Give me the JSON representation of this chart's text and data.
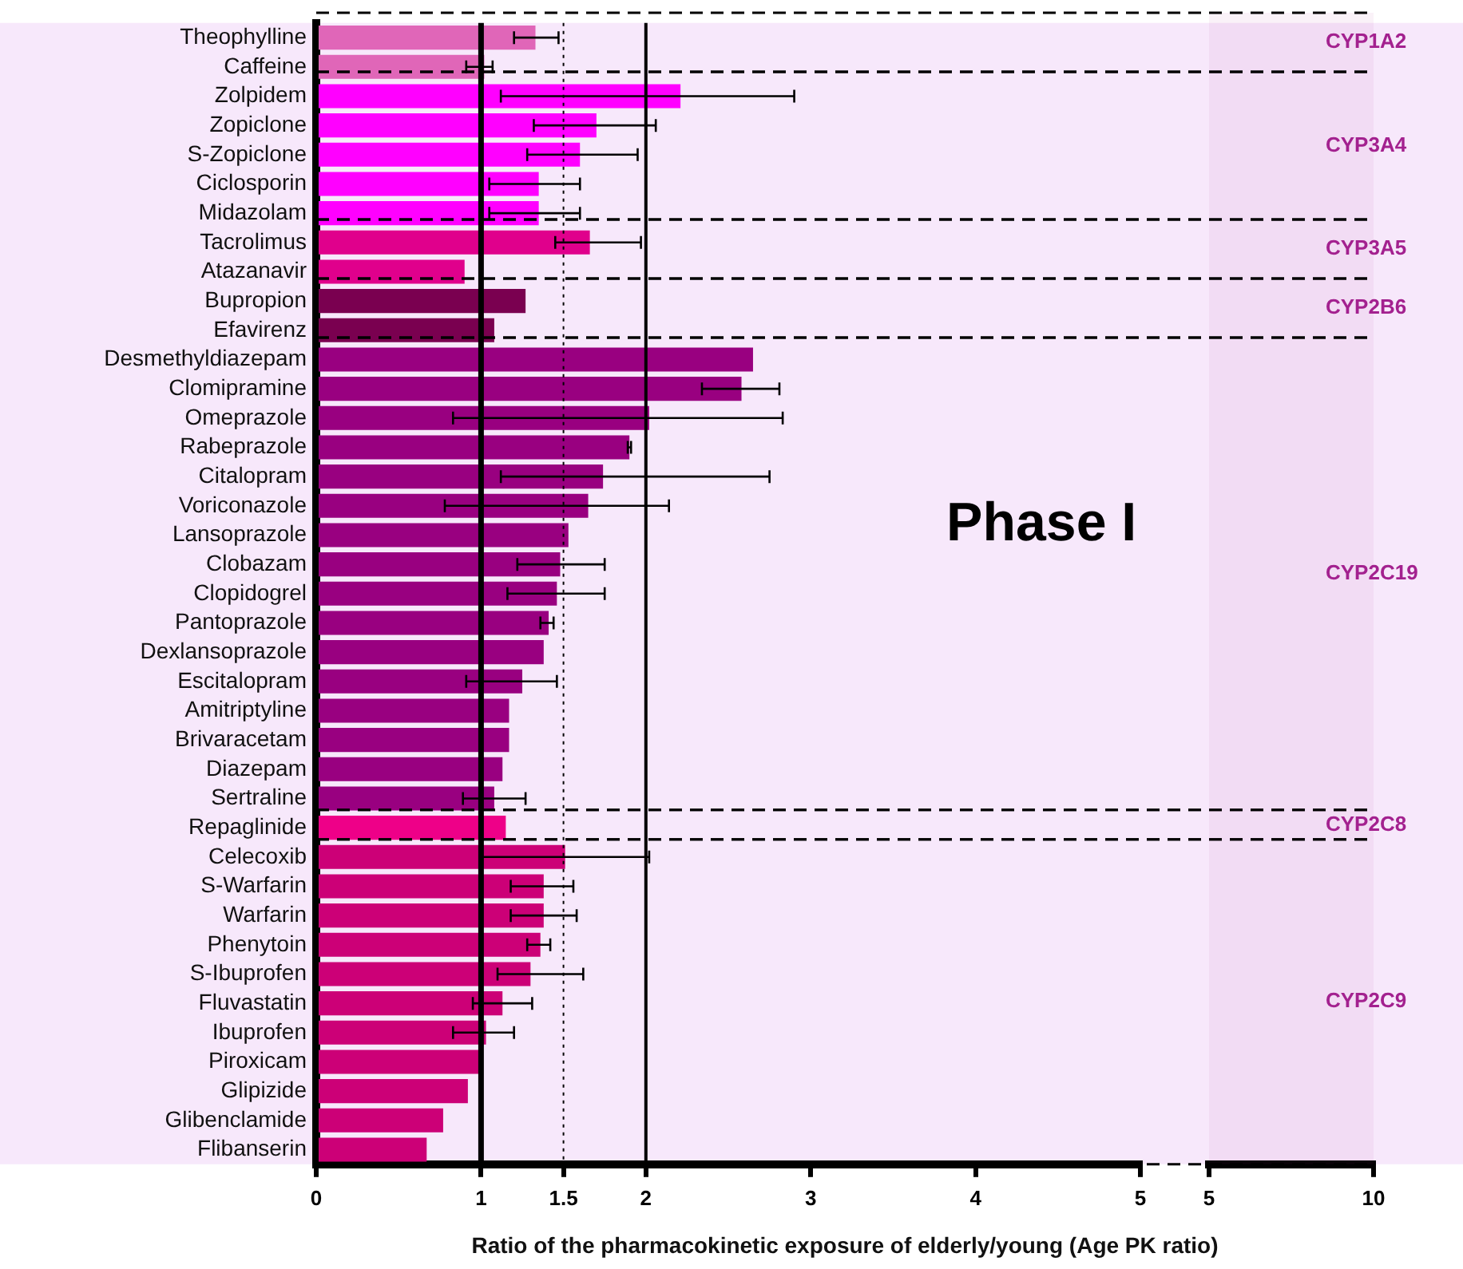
{
  "chart_data": [
    {
      "type": "bar",
      "orientation": "horizontal",
      "xlabel": "Ratio of the pharmacokinetic exposure of elderly/young (Age PK ratio)",
      "categories": [
        "Theophylline",
        "Caffeine",
        "Zolpidem",
        "Zopiclone",
        "S-Zopiclone",
        "Ciclosporin",
        "Midazolam",
        "Tacrolimus",
        "Atazanavir",
        "Bupropion",
        "Efavirenz",
        "Desmethyldiazepam",
        "Clomipramine",
        "Omeprazole",
        "Rabeprazole",
        "Citalopram",
        "Voriconazole",
        "Lansoprazole",
        "Clobazam",
        "Clopidogrel",
        "Pantoprazole",
        "Dexlansoprazole",
        "Escitalopram",
        "Amitriptyline",
        "Brivaracetam",
        "Diazepam",
        "Sertraline",
        "Repaglinide",
        "Celecoxib",
        "S-Warfarin",
        "Warfarin",
        "Phenytoin",
        "S-Ibuprofen",
        "Fluvastatin",
        "Ibuprofen",
        "Piroxicam",
        "Glipizide",
        "Glibenclamide",
        "Flibanserin"
      ],
      "values": [
        1.33,
        1.02,
        2.21,
        1.7,
        1.6,
        1.35,
        1.35,
        1.66,
        0.9,
        1.27,
        1.08,
        2.65,
        2.58,
        2.02,
        1.9,
        1.74,
        1.65,
        1.53,
        1.48,
        1.46,
        1.41,
        1.38,
        1.25,
        1.17,
        1.17,
        1.13,
        1.08,
        1.15,
        1.51,
        1.38,
        1.38,
        1.36,
        1.3,
        1.13,
        1.03,
        1.01,
        0.92,
        0.77,
        0.67
      ],
      "colors": [
        "#e066b8",
        "#e066b8",
        "#ff00ff",
        "#ff00ff",
        "#ff00ff",
        "#ff00ff",
        "#ff00ff",
        "#e0008c",
        "#e0008c",
        "#7a0050",
        "#7a0050",
        "#990080",
        "#990080",
        "#990080",
        "#990080",
        "#990080",
        "#990080",
        "#990080",
        "#990080",
        "#990080",
        "#990080",
        "#990080",
        "#990080",
        "#990080",
        "#990080",
        "#990080",
        "#990080",
        "#ee0088",
        "#cc0077",
        "#cc0077",
        "#cc0077",
        "#cc0077",
        "#cc0077",
        "#cc0077",
        "#cc0077",
        "#cc0077",
        "#cc0077",
        "#cc0077",
        "#cc0077"
      ],
      "errors": [
        [
          1.2,
          1.47
        ],
        [
          0.91,
          1.07
        ],
        [
          1.12,
          2.9
        ],
        [
          1.32,
          2.06
        ],
        [
          1.28,
          1.95
        ],
        [
          1.05,
          1.6
        ],
        [
          1.05,
          1.6
        ],
        [
          1.45,
          1.97
        ],
        null,
        null,
        null,
        null,
        [
          2.34,
          2.81
        ],
        [
          0.83,
          2.83
        ],
        [
          1.89,
          1.91
        ],
        [
          1.12,
          2.75
        ],
        [
          0.78,
          2.14
        ],
        null,
        [
          1.22,
          1.75
        ],
        [
          1.16,
          1.75
        ],
        [
          1.36,
          1.44
        ],
        null,
        [
          0.91,
          1.46
        ],
        null,
        null,
        null,
        [
          0.89,
          1.27
        ],
        null,
        [
          1.0,
          2.02
        ],
        [
          1.18,
          1.56
        ],
        [
          1.18,
          1.58
        ],
        [
          1.28,
          1.42
        ],
        [
          1.1,
          1.62
        ],
        [
          0.95,
          1.31
        ],
        [
          0.83,
          1.2
        ],
        null,
        null,
        null,
        null
      ],
      "xlim": [
        0,
        5
      ],
      "xticks": [
        0,
        1,
        1.5,
        2,
        3,
        4,
        5
      ],
      "ref_lines": [
        {
          "axis": "x",
          "value": 1,
          "line_style": "solid"
        },
        {
          "axis": "x",
          "value": 1.5,
          "line_style": "dotted"
        },
        {
          "axis": "x",
          "value": 2,
          "line_style": "solid"
        }
      ],
      "annotations": [
        "Phase I"
      ],
      "grid": false,
      "legend": false
    },
    {
      "type": "bar",
      "orientation": "horizontal",
      "tick_labels": "x",
      "categories": [
        "Theophylline",
        "Caffeine",
        "Zolpidem",
        "Zopiclone",
        "S-Zopiclone",
        "Ciclosporin",
        "Midazolam",
        "Tacrolimus",
        "Atazanavir",
        "Bupropion",
        "Efavirenz",
        "Desmethyldiazepam",
        "Clomipramine",
        "Omeprazole",
        "Rabeprazole",
        "Citalopram",
        "Voriconazole",
        "Lansoprazole",
        "Clobazam",
        "Clopidogrel",
        "Pantoprazole",
        "Dexlansoprazole",
        "Escitalopram",
        "Amitriptyline",
        "Brivaracetam",
        "Diazepam",
        "Sertraline",
        "Repaglinide",
        "Celecoxib",
        "S-Warfarin",
        "Warfarin",
        "Phenytoin",
        "S-Ibuprofen",
        "Fluvastatin",
        "Ibuprofen",
        "Piroxicam",
        "Glipizide",
        "Glibenclamide",
        "Flibanserin"
      ],
      "values": [
        null,
        null,
        null,
        null,
        null,
        null,
        null,
        null,
        null,
        null,
        null,
        null,
        null,
        null,
        null,
        null,
        null,
        null,
        null,
        null,
        null,
        null,
        null,
        null,
        null,
        null,
        null,
        null,
        null,
        null,
        null,
        null,
        null,
        null,
        null,
        null,
        null,
        null,
        null
      ],
      "xlim": [
        5,
        10
      ],
      "xticks": [
        5,
        10
      ],
      "bands": [
        {
          "axis": "y",
          "from": "Theophylline",
          "to": "Caffeine",
          "label": "CYP1A2",
          "color": "#a3218f"
        },
        {
          "axis": "y",
          "from": "Zolpidem",
          "to": "Midazolam",
          "label": "CYP3A4",
          "color": "#a3218f"
        },
        {
          "axis": "y",
          "from": "Tacrolimus",
          "to": "Atazanavir",
          "label": "CYP3A5",
          "color": "#a3218f"
        },
        {
          "axis": "y",
          "from": "Bupropion",
          "to": "Efavirenz",
          "label": "CYP2B6",
          "color": "#a3218f"
        },
        {
          "axis": "y",
          "from": "Desmethyldiazepam",
          "to": "Sertraline",
          "label": "CYP2C19",
          "color": "#a3218f"
        },
        {
          "axis": "y",
          "from": "Repaglinide",
          "to": "Repaglinide",
          "label": "CYP2C8",
          "color": "#a3218f"
        },
        {
          "axis": "y",
          "from": "Celecoxib",
          "to": "Flibanserin",
          "label": "CYP2C9",
          "color": "#a3218f"
        }
      ],
      "grid": false,
      "legend": false
    }
  ]
}
